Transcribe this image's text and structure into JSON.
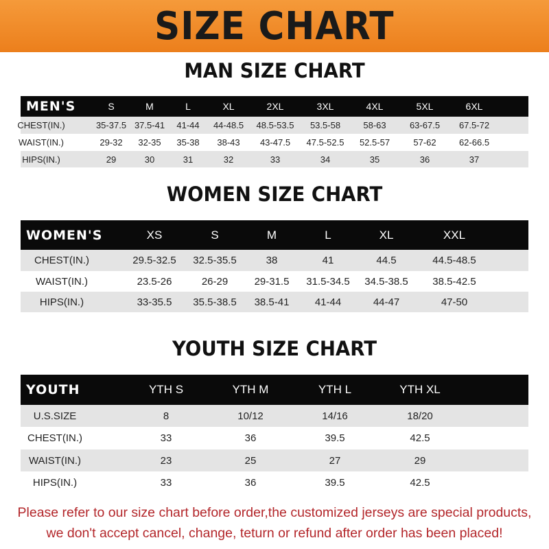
{
  "banner": {
    "title": "SIZE CHART",
    "color": "#f08a24"
  },
  "men": {
    "title": "MAN SIZE CHART",
    "header": [
      "MEN'S",
      "S",
      "M",
      "L",
      "XL",
      "2XL",
      "3XL",
      "4XL",
      "5XL",
      "6XL"
    ],
    "rows": [
      [
        "CHEST(IN.)",
        "35-37.5",
        "37.5-41",
        "41-44",
        "44-48.5",
        "48.5-53.5",
        "53.5-58",
        "58-63",
        "63-67.5",
        "67.5-72"
      ],
      [
        "WAIST(IN.)",
        "29-32",
        "32-35",
        "35-38",
        "38-43",
        "43-47.5",
        "47.5-52.5",
        "52.5-57",
        "57-62",
        "62-66.5"
      ],
      [
        "HIPS(IN.)",
        "29",
        "30",
        "31",
        "32",
        "33",
        "34",
        "35",
        "36",
        "37"
      ]
    ]
  },
  "women": {
    "title": "WOMEN SIZE CHART",
    "header": [
      "WOMEN'S",
      "XS",
      "S",
      "M",
      "L",
      "XL",
      "XXL"
    ],
    "rows": [
      [
        "CHEST(IN.)",
        "29.5-32.5",
        "32.5-35.5",
        "38",
        "41",
        "44.5",
        "44.5-48.5"
      ],
      [
        "WAIST(IN.)",
        "23.5-26",
        "26-29",
        "29-31.5",
        "31.5-34.5",
        "34.5-38.5",
        "38.5-42.5"
      ],
      [
        "HIPS(IN.)",
        "33-35.5",
        "35.5-38.5",
        "38.5-41",
        "41-44",
        "44-47",
        "47-50"
      ]
    ]
  },
  "youth": {
    "title": "YOUTH SIZE CHART",
    "header": [
      "YOUTH",
      "YTH S",
      "YTH M",
      "YTH L",
      "YTH XL"
    ],
    "rows": [
      [
        "U.S.SIZE",
        "8",
        "10/12",
        "14/16",
        "18/20"
      ],
      [
        "CHEST(IN.)",
        "33",
        "36",
        "39.5",
        "42.5"
      ],
      [
        "WAIST(IN.)",
        "23",
        "25",
        "27",
        "29"
      ],
      [
        "HIPS(IN.)",
        "33",
        "36",
        "39.5",
        "42.5"
      ]
    ]
  },
  "note": {
    "line1": "Please refer to our size chart before order,the customized jerseys are special products,",
    "line2": "we don't accept cancel, change, teturn or refund after order has been placed!",
    "color": "#b3262a"
  }
}
